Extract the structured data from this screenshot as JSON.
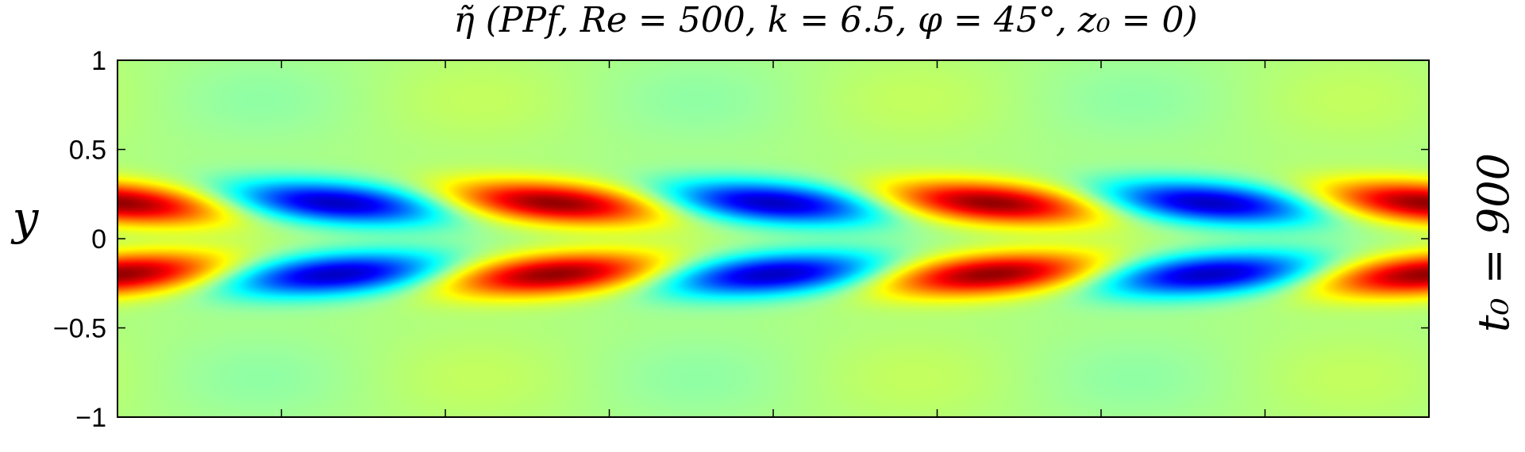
{
  "chart_data": {
    "type": "heatmap",
    "title": "η̃  (PPf,  Re =  500,  k = 6.5,  φ = 45°,  z₀ =  0)",
    "ylabel": "y",
    "side_label": "t₀ = 900",
    "ylim": [
      -1,
      1
    ],
    "yticks": [
      {
        "value": 1,
        "label": "1"
      },
      {
        "value": 0.5,
        "label": "0.5"
      },
      {
        "value": 0,
        "label": "0"
      },
      {
        "value": -0.5,
        "label": "−0.5"
      },
      {
        "value": -1,
        "label": "−1"
      }
    ],
    "x_minor_ticks": 8,
    "colormap": "jet",
    "colormap_stops": [
      "#00008f",
      "#0000ff",
      "#00ffff",
      "#9cff9c",
      "#ffff00",
      "#ff0000",
      "#800000"
    ],
    "background_level": 0.04,
    "field": {
      "periods_in_view": 3,
      "upper_lobe": {
        "center_y": 0.2,
        "phase_offset": 0.0,
        "tilt": "rising to the right"
      },
      "lower_lobe": {
        "center_y": -0.2,
        "phase_offset": 0.5,
        "tilt": "falling to the right"
      },
      "peak_amplitude": 1.0
    },
    "grid": false,
    "legend": "none"
  }
}
